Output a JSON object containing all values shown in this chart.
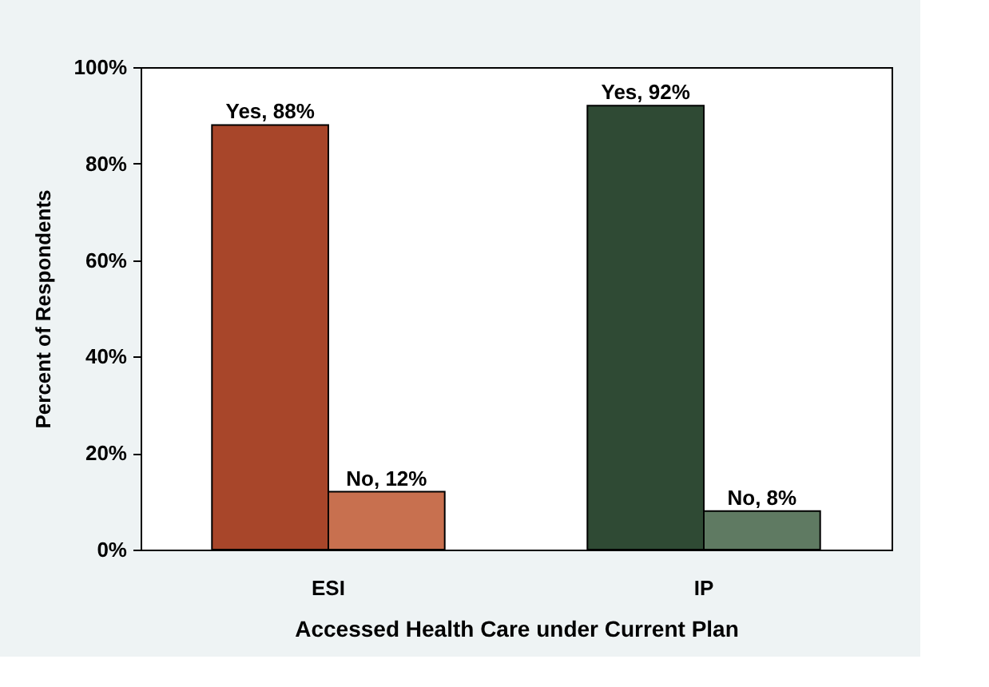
{
  "chart_data": {
    "type": "bar",
    "xlabel": "Accessed Health Care under Current Plan",
    "ylabel": "Percent of Respondents",
    "categories": [
      "ESI",
      "IP"
    ],
    "series": [
      {
        "colors": [
          "#a8462a",
          "#2f4a34"
        ],
        "values": [
          88,
          92
        ],
        "value_labels": [
          "Yes, 88%",
          "Yes, 92%"
        ]
      },
      {
        "colors": [
          "#c8704f",
          "#5f7a62"
        ],
        "values": [
          12,
          8
        ],
        "value_labels": [
          "No, 12%",
          "No, 8%"
        ]
      }
    ],
    "ylim": [
      0,
      100
    ],
    "yticks": [
      {
        "value": 0,
        "label": "0%"
      },
      {
        "value": 20,
        "label": "20%"
      },
      {
        "value": 40,
        "label": "40%"
      },
      {
        "value": 60,
        "label": "60%"
      },
      {
        "value": 80,
        "label": "80%"
      },
      {
        "value": 100,
        "label": "100%"
      }
    ],
    "grid": false
  }
}
